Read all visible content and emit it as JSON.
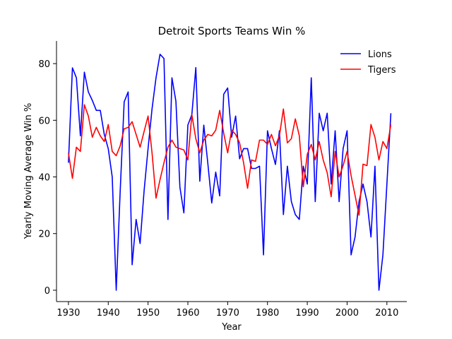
{
  "chart_data": {
    "type": "line",
    "title": "Detroit Sports Teams Win %",
    "xlabel": "Year",
    "ylabel": "Yearly Moving Average Win %",
    "xlim": [
      1927,
      2015
    ],
    "ylim": [
      -4,
      88
    ],
    "xticks": [
      1930,
      1940,
      1950,
      1960,
      1970,
      1980,
      1990,
      2000,
      2010
    ],
    "yticks": [
      0,
      20,
      40,
      60,
      80
    ],
    "legend_position": "top-right",
    "grid": false,
    "x": [
      1930,
      1931,
      1932,
      1933,
      1934,
      1935,
      1936,
      1937,
      1938,
      1939,
      1940,
      1941,
      1942,
      1943,
      1944,
      1945,
      1946,
      1947,
      1948,
      1949,
      1950,
      1951,
      1952,
      1953,
      1954,
      1955,
      1956,
      1957,
      1958,
      1959,
      1960,
      1961,
      1962,
      1963,
      1964,
      1965,
      1966,
      1967,
      1968,
      1969,
      1970,
      1971,
      1972,
      1973,
      1974,
      1975,
      1976,
      1977,
      1978,
      1979,
      1980,
      1981,
      1982,
      1983,
      1984,
      1985,
      1986,
      1987,
      1988,
      1989,
      1990,
      1991,
      1992,
      1993,
      1994,
      1995,
      1996,
      1997,
      1998,
      1999,
      2000,
      2001,
      2002,
      2003,
      2004,
      2005,
      2006,
      2007,
      2008,
      2009,
      2010,
      2011
    ],
    "series": [
      {
        "name": "Lions",
        "color": "#0000ff",
        "values": [
          45,
          78.5,
          75,
          54.5,
          77,
          70,
          67,
          63.5,
          63.5,
          55,
          50,
          40,
          0,
          35,
          66.5,
          70,
          9,
          25,
          16.5,
          35,
          50,
          64,
          75,
          83.3,
          81.8,
          25,
          75,
          66.7,
          36.4,
          27.3,
          58.3,
          62,
          78.6,
          38.5,
          58.3,
          45,
          30.8,
          41.7,
          33.3,
          69.2,
          71.4,
          54,
          61.5,
          46.4,
          50,
          50,
          43,
          43,
          43.8,
          12.5,
          56.3,
          50,
          44.4,
          56.3,
          26.7,
          43.8,
          31.3,
          26.7,
          25,
          43.8,
          37.5,
          75,
          31.3,
          62.5,
          56.3,
          62.5,
          37.5,
          56.3,
          31.3,
          50,
          56.3,
          12.5,
          18.8,
          31.3,
          37.5,
          31.3,
          18.8,
          43.8,
          0,
          12.5,
          37.5,
          62.5
        ]
      },
      {
        "name": "Tigers",
        "color": "#ff0000",
        "values": [
          48.5,
          39.5,
          50.5,
          49,
          65.5,
          61.5,
          54,
          57.5,
          54.5,
          52.5,
          58.5,
          49,
          47.5,
          51,
          57,
          57.5,
          59.5,
          55,
          50.5,
          56,
          61.5,
          48.5,
          32.5,
          39,
          45,
          50.5,
          53,
          50.5,
          50,
          49.5,
          46,
          62,
          53.5,
          48.5,
          53,
          55,
          54.5,
          56.5,
          63.5,
          55.5,
          48.5,
          56.5,
          55,
          52,
          45,
          36,
          46,
          45.5,
          53,
          53,
          51.5,
          55,
          51,
          54.5,
          64,
          52,
          53.5,
          60.5,
          54.5,
          36.5,
          48,
          51.5,
          46,
          52.5,
          46,
          41.5,
          33,
          49,
          40,
          44,
          49,
          40.5,
          33.5,
          26.5,
          44.5,
          44,
          58.5,
          54,
          46,
          52.5,
          50,
          58.5
        ]
      }
    ]
  }
}
